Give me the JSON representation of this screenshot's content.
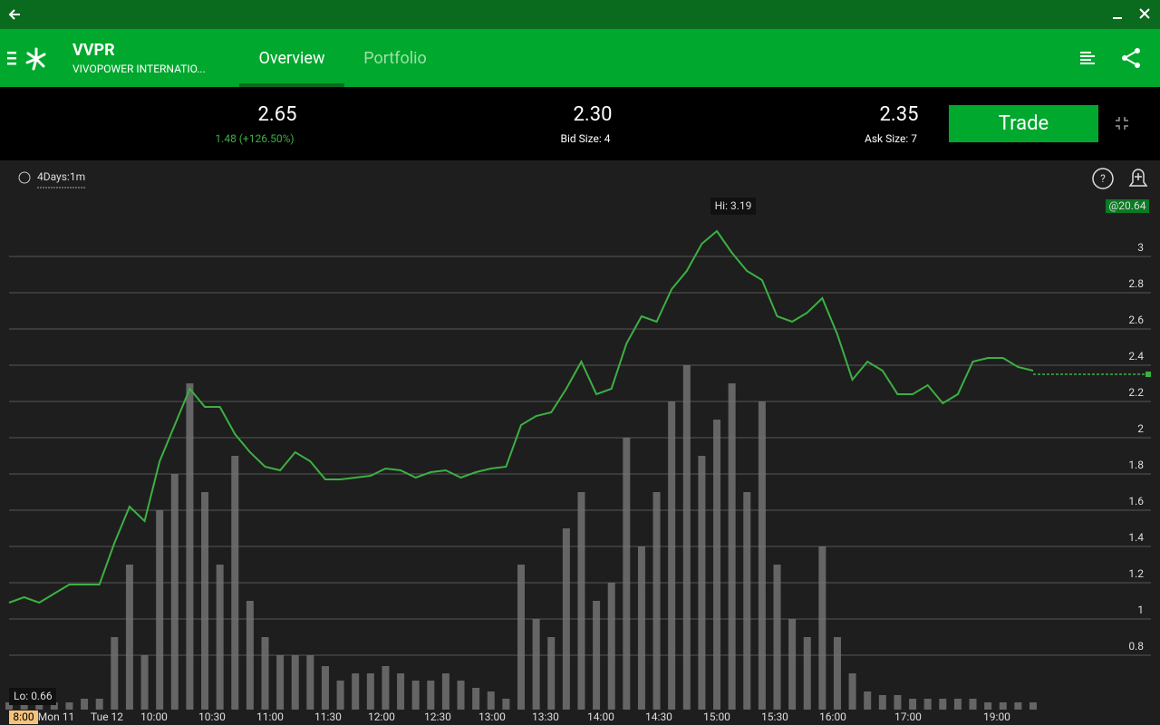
{
  "header": {
    "symbol": "VVPR",
    "company": "VIVOPOWER INTERNATIO...",
    "tabs": [
      "Overview",
      "Portfolio"
    ]
  },
  "quote": {
    "last": "2.65",
    "change": "1.48 (+126.50%)",
    "bid": "2.30",
    "bid_size": "Bid Size: 4",
    "ask": "2.35",
    "ask_size": "Ask Size: 7",
    "trade_button": "Trade"
  },
  "chart_data": {
    "type": "line",
    "interval": "4Days:1m",
    "hi_label": "Hi: 3.19",
    "lo_label": "Lo: 0.66",
    "alert_label": "@20.64",
    "last_price": 2.35,
    "x_labels": [
      "8:00",
      "Mon 11",
      "Tue 12",
      "10:00",
      "10:30",
      "11:00",
      "11:30",
      "12:00",
      "12:30",
      "13:00",
      "13:30",
      "14:00",
      "14:30",
      "15:00",
      "15:30",
      "16:00",
      "17:00",
      "19:00"
    ],
    "ylim": [
      0.5,
      3.45
    ],
    "yticks": [
      0.8,
      1,
      1.2,
      1.4,
      1.6,
      1.8,
      2,
      2.2,
      2.4,
      2.6,
      2.8,
      3
    ],
    "grid": true,
    "series": [
      {
        "name": "Price",
        "color": "#3cb043",
        "values": [
          1.09,
          1.12,
          1.09,
          1.14,
          1.19,
          1.19,
          1.19,
          1.42,
          1.62,
          1.54,
          1.87,
          2.07,
          2.27,
          2.17,
          2.17,
          2.02,
          1.92,
          1.84,
          1.82,
          1.92,
          1.87,
          1.77,
          1.77,
          1.78,
          1.79,
          1.83,
          1.82,
          1.78,
          1.81,
          1.82,
          1.78,
          1.81,
          1.83,
          1.84,
          2.07,
          2.12,
          2.14,
          2.27,
          2.42,
          2.24,
          2.27,
          2.52,
          2.67,
          2.64,
          2.82,
          2.92,
          3.07,
          3.14,
          3.02,
          2.92,
          2.87,
          2.67,
          2.64,
          2.69,
          2.77,
          2.57,
          2.32,
          2.42,
          2.37,
          2.24,
          2.24,
          2.29,
          2.19,
          2.24,
          2.42,
          2.44,
          2.44,
          2.39,
          2.37
        ]
      }
    ],
    "volume": {
      "color": "#777777",
      "vlim": [
        0,
        100
      ],
      "values": [
        2,
        2,
        2,
        2,
        2,
        3,
        3,
        20,
        40,
        15,
        55,
        65,
        90,
        60,
        40,
        70,
        30,
        20,
        15,
        15,
        15,
        12,
        8,
        10,
        10,
        12,
        10,
        8,
        8,
        10,
        8,
        6,
        5,
        3,
        40,
        25,
        20,
        50,
        60,
        30,
        35,
        75,
        45,
        60,
        85,
        95,
        70,
        80,
        90,
        60,
        85,
        40,
        25,
        20,
        45,
        20,
        10,
        5,
        4,
        4,
        3,
        3,
        3,
        3,
        3,
        2,
        2,
        2,
        2
      ]
    }
  }
}
